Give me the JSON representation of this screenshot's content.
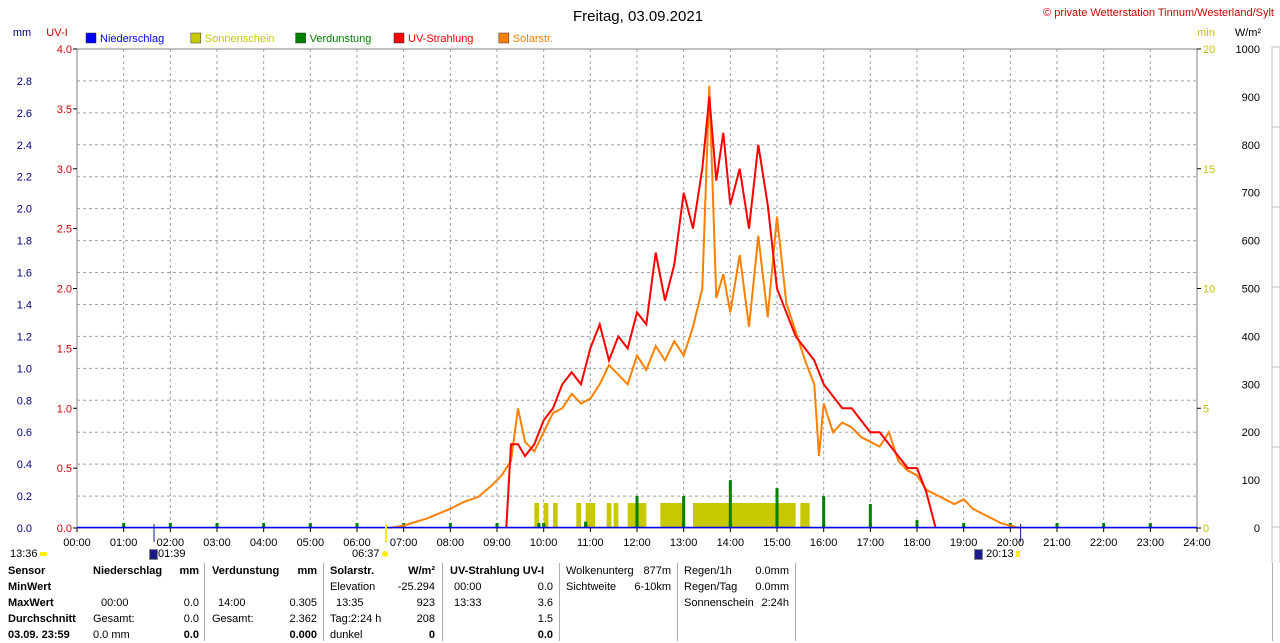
{
  "header": {
    "title": "Freitag, 03.09.2021",
    "credit": "© private Wetterstation Tinnum/Westerland/Sylt"
  },
  "chart_data": {
    "type": "line",
    "title": "Freitag, 03.09.2021",
    "x_ticks": [
      "00:00",
      "01:00",
      "02:00",
      "03:00",
      "04:00",
      "05:00",
      "06:00",
      "07:00",
      "08:00",
      "09:00",
      "10:00",
      "11:00",
      "12:00",
      "13:00",
      "14:00",
      "15:00",
      "16:00",
      "17:00",
      "18:00",
      "19:00",
      "20:00",
      "21:00",
      "22:00",
      "23:00",
      "24:00"
    ],
    "axes": {
      "mm": {
        "label": "mm",
        "ticks": [
          "0.0",
          "0.2",
          "0.4",
          "0.6",
          "0.8",
          "1.0",
          "1.2",
          "1.4",
          "1.6",
          "1.8",
          "2.0",
          "2.2",
          "2.4",
          "2.6",
          "2.8"
        ],
        "range": [
          0,
          3.0
        ],
        "color": "#000080"
      },
      "uv": {
        "label": "UV-I",
        "ticks": [
          "0.0",
          "0.5",
          "1.0",
          "1.5",
          "2.0",
          "2.5",
          "3.0",
          "3.5",
          "4.0"
        ],
        "range": [
          0,
          4.0
        ],
        "color": "#cc0000"
      },
      "min": {
        "label": "min",
        "ticks": [
          "0",
          "5",
          "10",
          "15",
          "20"
        ],
        "range": [
          0,
          20
        ],
        "color": "#c8c000"
      },
      "wm2": {
        "label": "W/m²",
        "ticks": [
          "0",
          "100",
          "200",
          "300",
          "400",
          "500",
          "600",
          "700",
          "800",
          "900",
          "1000"
        ],
        "range": [
          0,
          1000
        ],
        "color": "#000000"
      }
    },
    "legend": [
      {
        "name": "Niederschlag",
        "color": "#0000ff"
      },
      {
        "name": "Sonnenschein",
        "color": "#c8c800"
      },
      {
        "name": "Verdunstung",
        "color": "#008000"
      },
      {
        "name": "UV-Strahlung",
        "color": "#ff0000"
      },
      {
        "name": "Solarstr.",
        "color": "#ff8000"
      }
    ],
    "solar_wm2": {
      "hours": [
        6.7,
        7.0,
        7.5,
        8.0,
        8.3,
        8.6,
        8.9,
        9.1,
        9.3,
        9.45,
        9.6,
        9.8,
        10.0,
        10.2,
        10.4,
        10.6,
        10.8,
        11.0,
        11.2,
        11.4,
        11.6,
        11.8,
        12.0,
        12.2,
        12.4,
        12.6,
        12.8,
        13.0,
        13.2,
        13.4,
        13.55,
        13.7,
        13.85,
        14.0,
        14.2,
        14.4,
        14.6,
        14.8,
        15.0,
        15.2,
        15.4,
        15.6,
        15.8,
        15.9,
        16.0,
        16.2,
        16.4,
        16.6,
        16.8,
        17.0,
        17.2,
        17.4,
        17.6,
        17.8,
        18.0,
        18.2,
        18.4,
        18.6,
        18.8,
        19.0,
        19.2,
        19.4,
        19.6,
        19.8,
        20.0,
        20.2
      ],
      "values": [
        0,
        5,
        20,
        40,
        55,
        65,
        90,
        110,
        140,
        250,
        180,
        160,
        200,
        240,
        250,
        280,
        260,
        270,
        300,
        340,
        320,
        300,
        360,
        330,
        380,
        350,
        390,
        360,
        420,
        500,
        923,
        480,
        530,
        450,
        570,
        420,
        610,
        440,
        650,
        470,
        410,
        350,
        300,
        150,
        260,
        200,
        220,
        210,
        190,
        180,
        170,
        200,
        140,
        120,
        110,
        80,
        70,
        60,
        50,
        60,
        40,
        30,
        20,
        10,
        5,
        0
      ]
    },
    "uv_index": {
      "hours": [
        9.2,
        9.3,
        9.45,
        9.6,
        9.8,
        10.0,
        10.2,
        10.4,
        10.6,
        10.8,
        11.0,
        11.2,
        11.4,
        11.6,
        11.8,
        12.0,
        12.2,
        12.4,
        12.6,
        12.8,
        13.0,
        13.2,
        13.4,
        13.55,
        13.7,
        13.85,
        14.0,
        14.2,
        14.4,
        14.6,
        14.8,
        15.0,
        15.2,
        15.4,
        15.6,
        15.8,
        16.0,
        16.2,
        16.4,
        16.6,
        16.8,
        17.0,
        17.2,
        17.4,
        17.6,
        17.8,
        18.0,
        18.2,
        18.4
      ],
      "values": [
        0,
        0.7,
        0.7,
        0.6,
        0.7,
        0.9,
        1.0,
        1.2,
        1.3,
        1.2,
        1.5,
        1.7,
        1.4,
        1.6,
        1.5,
        1.8,
        1.7,
        2.3,
        1.9,
        2.2,
        2.8,
        2.5,
        3.0,
        3.6,
        2.9,
        3.3,
        2.7,
        3.0,
        2.5,
        3.2,
        2.7,
        2.0,
        1.8,
        1.6,
        1.5,
        1.4,
        1.2,
        1.1,
        1.0,
        1.0,
        0.9,
        0.8,
        0.8,
        0.7,
        0.6,
        0.5,
        0.5,
        0.3,
        0.0
      ]
    },
    "sunshine_bars": [
      [
        9.8,
        9.9
      ],
      [
        10.0,
        10.1
      ],
      [
        10.2,
        10.3
      ],
      [
        10.7,
        10.8
      ],
      [
        10.9,
        11.0
      ],
      [
        11.0,
        11.1
      ],
      [
        11.35,
        11.45
      ],
      [
        11.5,
        11.6
      ],
      [
        11.8,
        12.0
      ],
      [
        12.0,
        12.2
      ],
      [
        12.5,
        13.0
      ],
      [
        13.2,
        14.0
      ],
      [
        14.0,
        15.4
      ],
      [
        15.5,
        15.7
      ]
    ],
    "evap_ticks": [
      1,
      2,
      3,
      4,
      5,
      6,
      7,
      8,
      9,
      9.9,
      10.0,
      10.9,
      12.0,
      13.0,
      14.0,
      15.0,
      16.0,
      17.0,
      18.0,
      19.0,
      20.0,
      21.0,
      22.0,
      23.0
    ],
    "evap_bars": [
      {
        "h": 9.9,
        "v": 0.03
      },
      {
        "h": 10.9,
        "v": 0.04
      },
      {
        "h": 12.0,
        "v": 0.2
      },
      {
        "h": 13.0,
        "v": 0.2
      },
      {
        "h": 14.0,
        "v": 0.3
      },
      {
        "h": 15.0,
        "v": 0.25
      },
      {
        "h": 16.0,
        "v": 0.2
      },
      {
        "h": 17.0,
        "v": 0.15
      },
      {
        "h": 18.0,
        "v": 0.05
      }
    ]
  },
  "markers": {
    "min_time": "13:36",
    "moon_time": "01:39",
    "sunrise": "06:37",
    "sunset": "20:13"
  },
  "table": {
    "col_sensor": {
      "header": "Sensor",
      "rows": [
        "MinWert",
        "MaxWert",
        "Durchschnitt",
        "03.09. 23:59"
      ]
    },
    "niederschlag": {
      "header": "Niederschlag",
      "unit": "mm",
      "rows": [
        [
          "",
          ""
        ],
        [
          "00:00",
          "0.0"
        ],
        [
          "Gesamt:",
          "0.0"
        ],
        [
          "0.0 mm",
          "0.0"
        ]
      ]
    },
    "verdunstung": {
      "header": "Verdunstung",
      "unit": "mm",
      "rows": [
        [
          "",
          ""
        ],
        [
          "14:00",
          "0.305"
        ],
        [
          "Gesamt:",
          "2.362"
        ],
        [
          "",
          "0.000"
        ]
      ]
    },
    "solar": {
      "header": "Solarstr.",
      "unit": "W/m²",
      "rows": [
        [
          "Elevation",
          "-25.294"
        ],
        [
          "13:35",
          "923"
        ],
        [
          "Tag:2:24 h",
          "208"
        ],
        [
          "dunkel",
          "0"
        ]
      ]
    },
    "uv": {
      "header": "UV-Strahlung UV-I",
      "rows": [
        [
          "00:00",
          "0.0"
        ],
        [
          "13:33",
          "3.6"
        ],
        [
          "",
          "1.5"
        ],
        [
          "",
          "0.0"
        ]
      ]
    },
    "weather": {
      "rows": [
        [
          "Wolkenunterg",
          "877m"
        ],
        [
          "Sichtweite",
          "6-10km"
        ]
      ]
    },
    "rain": {
      "rows": [
        [
          "Regen/1h",
          "0.0mm"
        ],
        [
          "Regen/Tag",
          "0.0mm"
        ],
        [
          "Sonnenschein",
          "2:24h"
        ]
      ]
    }
  }
}
